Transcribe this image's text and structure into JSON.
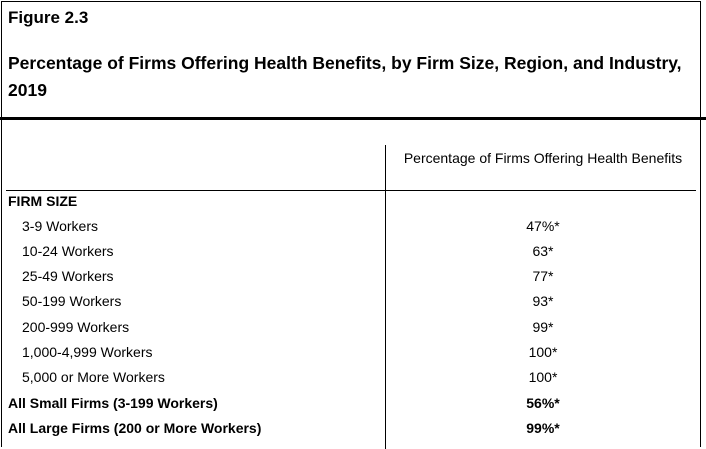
{
  "figure": {
    "number": "Figure 2.3",
    "title": "Percentage of Firms Offering Health Benefits, by Firm Size, Region, and Industry, 2019"
  },
  "table": {
    "column_header": "Percentage of Firms Offering Health Benefits",
    "section": "FIRM SIZE",
    "rows": [
      {
        "label": "3-9 Workers",
        "value": "47%*"
      },
      {
        "label": "10-24 Workers",
        "value": "63*"
      },
      {
        "label": "25-49 Workers",
        "value": "77*"
      },
      {
        "label": "50-199 Workers",
        "value": "93*"
      },
      {
        "label": "200-999 Workers",
        "value": "99*"
      },
      {
        "label": "1,000-4,999 Workers",
        "value": "100*"
      },
      {
        "label": "5,000 or More Workers",
        "value": "100*"
      }
    ],
    "summary_rows": [
      {
        "label": "All Small Firms (3-199 Workers)",
        "value": "56%*"
      },
      {
        "label": "All Large Firms (200 or More Workers)",
        "value": "99%*"
      }
    ]
  }
}
